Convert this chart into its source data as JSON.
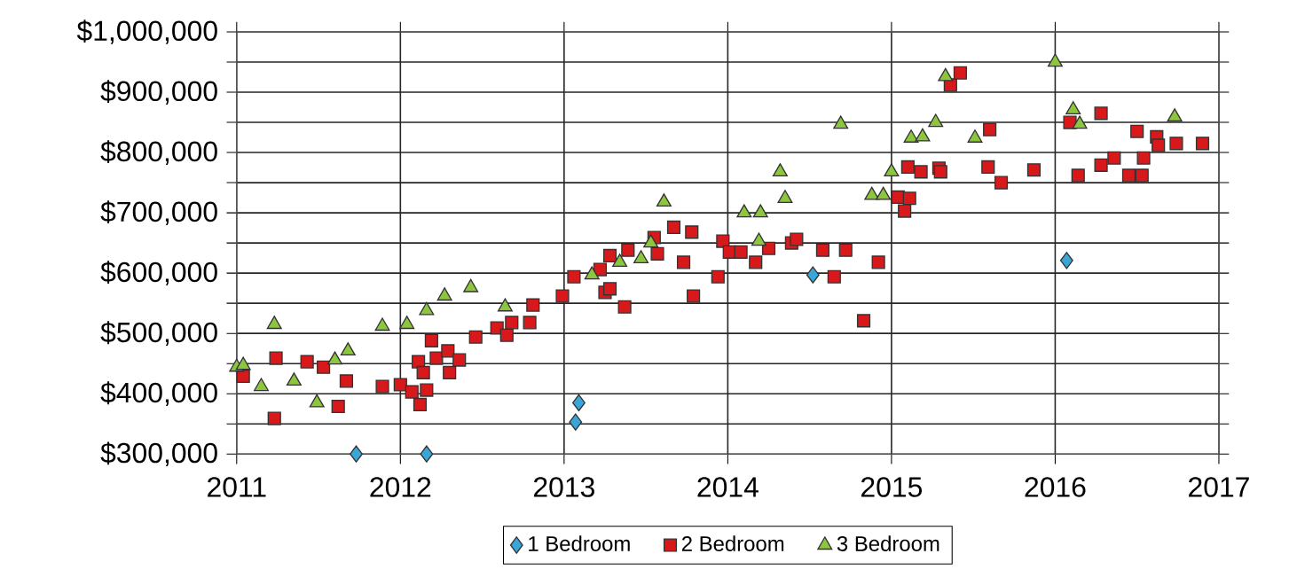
{
  "chart_data": {
    "type": "scatter",
    "xlim": [
      2011,
      2017
    ],
    "xticks": [
      2011,
      2012,
      2013,
      2014,
      2015,
      2016,
      2017
    ],
    "ylim": [
      300000,
      1000000
    ],
    "yticks": [
      {
        "value": 300000,
        "label": "$300,000"
      },
      {
        "value": 350000,
        "label": null
      },
      {
        "value": 400000,
        "label": "$400,000"
      },
      {
        "value": 450000,
        "label": null
      },
      {
        "value": 500000,
        "label": "$500,000"
      },
      {
        "value": 550000,
        "label": null
      },
      {
        "value": 600000,
        "label": "$600,000"
      },
      {
        "value": 650000,
        "label": null
      },
      {
        "value": 700000,
        "label": "$700,000"
      },
      {
        "value": 750000,
        "label": null
      },
      {
        "value": 800000,
        "label": "$800,000"
      },
      {
        "value": 850000,
        "label": null
      },
      {
        "value": 900000,
        "label": "$900,000"
      },
      {
        "value": 950000,
        "label": null
      },
      {
        "value": 1000000,
        "label": "$1,000,000"
      }
    ],
    "grid": true,
    "legend": "bottom",
    "series": [
      {
        "name": "1 Bedroom",
        "color": "#3aa6d8",
        "marker": "diamond",
        "x": [
          2011.73,
          2012.16,
          2013.07,
          2013.09,
          2014.52,
          2016.07
        ],
        "values": [
          300000,
          300000,
          353000,
          385000,
          597000,
          621000
        ]
      },
      {
        "name": "2 Bedroom",
        "color": "#d7191c",
        "marker": "square",
        "x": [
          2011.04,
          2011.24,
          2011.23,
          2011.43,
          2011.53,
          2011.67,
          2011.62,
          2011.89,
          2012.0,
          2012.07,
          2012.16,
          2012.12,
          2012.11,
          2012.19,
          2012.14,
          2012.22,
          2012.29,
          2012.3,
          2012.36,
          2012.46,
          2012.59,
          2012.65,
          2012.68,
          2012.79,
          2012.81,
          2012.99,
          2013.06,
          2013.22,
          2013.28,
          2013.39,
          2013.55,
          2013.57,
          2013.25,
          2013.28,
          2013.37,
          2013.67,
          2013.78,
          2013.73,
          2013.79,
          2013.94,
          2013.97,
          2014.01,
          2014.08,
          2014.17,
          2014.25,
          2014.39,
          2014.42,
          2014.58,
          2014.72,
          2014.65,
          2014.83,
          2014.92,
          2015.04,
          2015.11,
          2015.08,
          2015.1,
          2015.18,
          2015.29,
          2015.3,
          2015.36,
          2015.42,
          2015.6,
          2015.59,
          2015.67,
          2015.87,
          2016.09,
          2016.14,
          2016.28,
          2016.28,
          2016.36,
          2016.45,
          2016.5,
          2016.53,
          2016.54,
          2016.62,
          2016.63,
          2016.74,
          2016.9
        ],
        "values": [
          429000,
          459000,
          359000,
          453000,
          444000,
          421000,
          379000,
          412000,
          415000,
          403000,
          406000,
          382000,
          453000,
          488000,
          435000,
          459000,
          471000,
          435000,
          456000,
          494000,
          509000,
          497000,
          518000,
          518000,
          547000,
          562000,
          594000,
          606000,
          629000,
          638000,
          659000,
          632000,
          568000,
          574000,
          544000,
          676000,
          668000,
          618000,
          562000,
          594000,
          653000,
          635000,
          635000,
          618000,
          641000,
          650000,
          656000,
          638000,
          638000,
          594000,
          521000,
          618000,
          726000,
          724000,
          703000,
          776000,
          768000,
          774000,
          768000,
          912000,
          932000,
          838000,
          776000,
          750000,
          771000,
          850000,
          762000,
          865000,
          779000,
          791000,
          762000,
          835000,
          762000,
          791000,
          826000,
          812000,
          815000,
          815000
        ]
      },
      {
        "name": "3 Bedroom",
        "color": "#8cc63f",
        "marker": "triangle",
        "x": [
          2011.0,
          2011.04,
          2011.23,
          2011.15,
          2011.35,
          2011.49,
          2011.6,
          2011.68,
          2011.89,
          2012.04,
          2012.16,
          2012.27,
          2012.43,
          2012.64,
          2013.17,
          2013.34,
          2013.47,
          2013.53,
          2013.61,
          2014.1,
          2014.2,
          2014.32,
          2014.35,
          2014.19,
          2014.69,
          2014.88,
          2014.95,
          2015.0,
          2015.12,
          2015.19,
          2015.27,
          2015.33,
          2015.51,
          2016.0,
          2016.11,
          2016.15,
          2016.73
        ],
        "values": [
          444000,
          447000,
          515000,
          412000,
          421000,
          385000,
          456000,
          471000,
          512000,
          515000,
          538000,
          562000,
          576000,
          544000,
          597000,
          618000,
          624000,
          650000,
          718000,
          700000,
          700000,
          768000,
          724000,
          653000,
          847000,
          729000,
          729000,
          768000,
          824000,
          826000,
          850000,
          926000,
          824000,
          950000,
          871000,
          847000,
          859000
        ]
      }
    ]
  }
}
